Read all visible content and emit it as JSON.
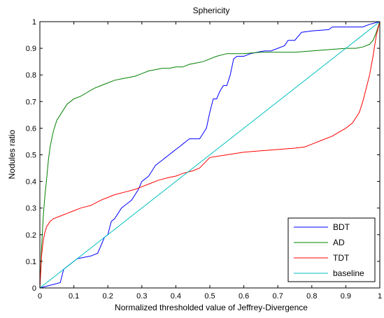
{
  "chart_data": {
    "type": "line",
    "title": "Sphericity",
    "xlabel": "Normalized thresholded value of Jeffrey-Divergence",
    "ylabel": "Nodules ratio",
    "xlim": [
      0,
      1
    ],
    "ylim": [
      0,
      1
    ],
    "xticks": [
      "0",
      "0.1",
      "0.2",
      "0.3",
      "0.4",
      "0.5",
      "0.6",
      "0.7",
      "0.8",
      "0.9",
      "1"
    ],
    "yticks": [
      "0",
      "0.1",
      "0.2",
      "0.3",
      "0.4",
      "0.5",
      "0.6",
      "0.7",
      "0.8",
      "0.9",
      "1"
    ],
    "grid": false,
    "legend_position": "bottom-right",
    "series": [
      {
        "name": "BDT",
        "color": "#0000ff",
        "x": [
          0,
          0.06,
          0.07,
          0.08,
          0.09,
          0.1,
          0.11,
          0.13,
          0.15,
          0.17,
          0.18,
          0.19,
          0.2,
          0.21,
          0.22,
          0.23,
          0.24,
          0.25,
          0.26,
          0.27,
          0.28,
          0.29,
          0.3,
          0.31,
          0.32,
          0.33,
          0.34,
          0.35,
          0.36,
          0.37,
          0.38,
          0.39,
          0.4,
          0.41,
          0.42,
          0.43,
          0.44,
          0.45,
          0.46,
          0.47,
          0.48,
          0.49,
          0.5,
          0.51,
          0.52,
          0.53,
          0.54,
          0.55,
          0.56,
          0.57,
          0.58,
          0.6,
          0.62,
          0.64,
          0.66,
          0.68,
          0.7,
          0.72,
          0.73,
          0.75,
          0.77,
          0.8,
          0.85,
          0.86,
          0.9,
          0.95,
          0.97,
          1
        ],
        "y": [
          0,
          0.02,
          0.07,
          0.08,
          0.09,
          0.1,
          0.11,
          0.115,
          0.12,
          0.13,
          0.16,
          0.19,
          0.2,
          0.25,
          0.26,
          0.28,
          0.3,
          0.31,
          0.32,
          0.33,
          0.35,
          0.37,
          0.4,
          0.41,
          0.42,
          0.44,
          0.46,
          0.47,
          0.48,
          0.49,
          0.5,
          0.51,
          0.52,
          0.53,
          0.54,
          0.55,
          0.56,
          0.56,
          0.56,
          0.56,
          0.58,
          0.6,
          0.66,
          0.71,
          0.71,
          0.74,
          0.76,
          0.76,
          0.8,
          0.86,
          0.87,
          0.87,
          0.88,
          0.885,
          0.89,
          0.89,
          0.9,
          0.91,
          0.93,
          0.93,
          0.96,
          0.965,
          0.97,
          0.98,
          0.98,
          0.98,
          0.99,
          1
        ]
      },
      {
        "name": "AD",
        "color": "#008000",
        "x": [
          0,
          0.005,
          0.01,
          0.015,
          0.02,
          0.025,
          0.03,
          0.04,
          0.05,
          0.06,
          0.07,
          0.08,
          0.09,
          0.1,
          0.12,
          0.14,
          0.16,
          0.18,
          0.2,
          0.22,
          0.24,
          0.26,
          0.28,
          0.3,
          0.32,
          0.34,
          0.36,
          0.38,
          0.4,
          0.42,
          0.44,
          0.46,
          0.48,
          0.5,
          0.52,
          0.55,
          0.6,
          0.65,
          0.7,
          0.75,
          0.8,
          0.85,
          0.9,
          0.93,
          0.95,
          0.97,
          0.98,
          0.99,
          1
        ],
        "y": [
          0,
          0.15,
          0.27,
          0.35,
          0.41,
          0.48,
          0.53,
          0.59,
          0.63,
          0.65,
          0.67,
          0.69,
          0.7,
          0.71,
          0.72,
          0.735,
          0.75,
          0.76,
          0.77,
          0.78,
          0.785,
          0.79,
          0.795,
          0.805,
          0.815,
          0.82,
          0.825,
          0.825,
          0.83,
          0.83,
          0.84,
          0.845,
          0.85,
          0.86,
          0.87,
          0.88,
          0.88,
          0.885,
          0.885,
          0.885,
          0.89,
          0.895,
          0.9,
          0.9,
          0.905,
          0.915,
          0.93,
          0.96,
          1
        ]
      },
      {
        "name": "TDT",
        "color": "#ff0000",
        "x": [
          0,
          0.005,
          0.01,
          0.015,
          0.02,
          0.03,
          0.04,
          0.06,
          0.08,
          0.1,
          0.12,
          0.15,
          0.18,
          0.2,
          0.22,
          0.25,
          0.28,
          0.3,
          0.32,
          0.35,
          0.38,
          0.4,
          0.42,
          0.45,
          0.47,
          0.5,
          0.55,
          0.6,
          0.65,
          0.7,
          0.75,
          0.78,
          0.8,
          0.83,
          0.86,
          0.88,
          0.9,
          0.92,
          0.94,
          0.95,
          0.96,
          0.97,
          0.98,
          0.99,
          1
        ],
        "y": [
          0,
          0.12,
          0.18,
          0.21,
          0.23,
          0.25,
          0.26,
          0.27,
          0.28,
          0.29,
          0.3,
          0.31,
          0.33,
          0.34,
          0.35,
          0.36,
          0.37,
          0.38,
          0.39,
          0.405,
          0.415,
          0.42,
          0.43,
          0.44,
          0.45,
          0.49,
          0.5,
          0.51,
          0.515,
          0.52,
          0.525,
          0.53,
          0.54,
          0.555,
          0.57,
          0.585,
          0.6,
          0.62,
          0.66,
          0.7,
          0.75,
          0.8,
          0.87,
          0.95,
          1
        ]
      },
      {
        "name": "baseline",
        "color": "#00bfbf",
        "x": [
          0,
          1
        ],
        "y": [
          0,
          1
        ]
      }
    ]
  }
}
